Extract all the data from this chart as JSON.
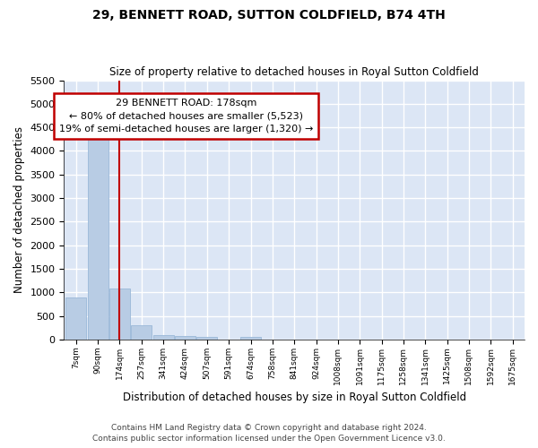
{
  "title1": "29, BENNETT ROAD, SUTTON COLDFIELD, B74 4TH",
  "title2": "Size of property relative to detached houses in Royal Sutton Coldfield",
  "xlabel": "Distribution of detached houses by size in Royal Sutton Coldfield",
  "ylabel": "Number of detached properties",
  "footnote1": "Contains HM Land Registry data © Crown copyright and database right 2024.",
  "footnote2": "Contains public sector information licensed under the Open Government Licence v3.0.",
  "annotation_line1": "29 BENNETT ROAD: 178sqm",
  "annotation_line2": "← 80% of detached houses are smaller (5,523)",
  "annotation_line3": "19% of semi-detached houses are larger (1,320) →",
  "bar_color": "#b8cce4",
  "bar_edge_color": "#9ab8d8",
  "line_color": "#c00000",
  "annotation_box_edgecolor": "#c00000",
  "background_color": "#dce6f5",
  "grid_color": "#ffffff",
  "fig_bg": "#ffffff",
  "ylim": [
    0,
    5500
  ],
  "yticks": [
    0,
    500,
    1000,
    1500,
    2000,
    2500,
    3000,
    3500,
    4000,
    4500,
    5000,
    5500
  ],
  "bins": [
    "7sqm",
    "90sqm",
    "174sqm",
    "257sqm",
    "341sqm",
    "424sqm",
    "507sqm",
    "591sqm",
    "674sqm",
    "758sqm",
    "841sqm",
    "924sqm",
    "1008sqm",
    "1091sqm",
    "1175sqm",
    "1258sqm",
    "1341sqm",
    "1425sqm",
    "1508sqm",
    "1592sqm",
    "1675sqm"
  ],
  "bin_values": [
    900,
    4600,
    1075,
    305,
    90,
    65,
    55,
    0,
    50,
    0,
    0,
    0,
    0,
    0,
    0,
    0,
    0,
    0,
    0,
    0,
    0
  ],
  "property_bin_index": 2,
  "n_bins": 21
}
